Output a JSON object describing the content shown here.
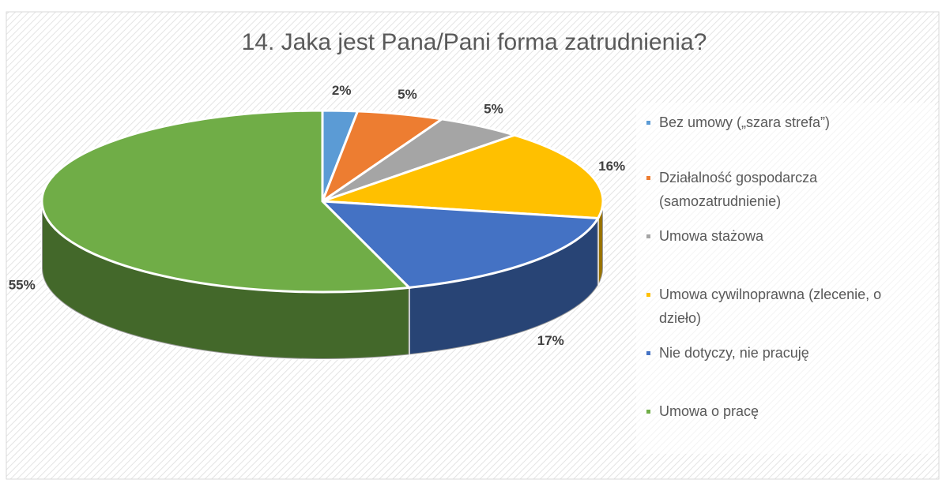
{
  "chart_data": {
    "type": "pie",
    "title": "14. Jaka jest Pana/Pani forma zatrudnienia?",
    "categories": [
      "Bez umowy („szara strefa”)",
      "Działalność gospodarcza (samozatrudnienie)",
      "Umowa stażowa",
      "Umowa cywilnoprawna (zlecenie, o dzieło)",
      "Nie dotyczy, nie pracuję",
      "Umowa o pracę"
    ],
    "values": [
      2,
      5,
      5,
      16,
      17,
      55
    ],
    "value_labels": [
      "2%",
      "5%",
      "5%",
      "16%",
      "17%",
      "55%"
    ],
    "colors": [
      "#5b9bd5",
      "#ed7d31",
      "#a5a5a5",
      "#ffc000",
      "#4472c4",
      "#70ad47"
    ],
    "legend": "right"
  }
}
